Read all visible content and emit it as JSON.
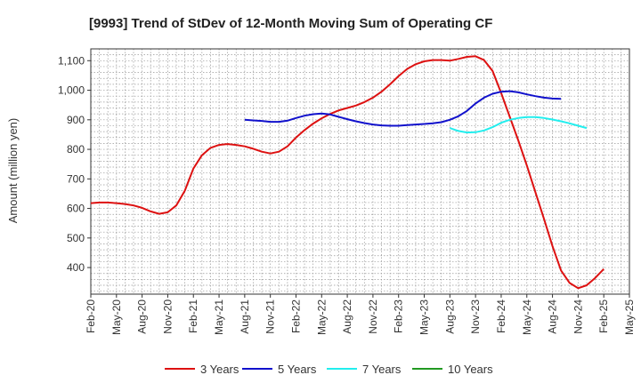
{
  "chart_data": {
    "type": "line",
    "title": "[9993]  Trend of StDev of 12-Month Moving Sum of Operating CF",
    "xlabel": "",
    "ylabel": "Amount (million yen)",
    "ylim": [
      310,
      1140
    ],
    "yticks": [
      400,
      500,
      600,
      700,
      800,
      900,
      1000,
      1100
    ],
    "ytick_labels": [
      "400",
      "500",
      "600",
      "700",
      "800",
      "900",
      "1,000",
      "1,100"
    ],
    "x_tick_labels": [
      "Feb-20",
      "May-20",
      "Aug-20",
      "Nov-20",
      "Feb-21",
      "May-21",
      "Aug-21",
      "Nov-21",
      "Feb-22",
      "May-22",
      "Aug-22",
      "Nov-22",
      "Feb-23",
      "May-23",
      "Aug-23",
      "Nov-23",
      "Feb-24",
      "May-24",
      "Aug-24",
      "Nov-24",
      "Feb-25",
      "May-25"
    ],
    "x_range_months": [
      0,
      63
    ],
    "grid": true,
    "legend_position": "bottom",
    "series": [
      {
        "name": "3 Years",
        "color": "#dd1111",
        "start_month": 0,
        "values": [
          618,
          620,
          620,
          618,
          615,
          610,
          602,
          590,
          582,
          587,
          610,
          660,
          735,
          780,
          805,
          815,
          818,
          815,
          810,
          802,
          792,
          786,
          792,
          810,
          840,
          865,
          887,
          905,
          920,
          932,
          940,
          948,
          960,
          975,
          995,
          1020,
          1048,
          1072,
          1088,
          1098,
          1102,
          1102,
          1100,
          1106,
          1113,
          1115,
          1102,
          1065,
          990,
          910,
          830,
          745,
          655,
          565,
          472,
          390,
          348,
          330,
          340,
          365,
          395
        ]
      },
      {
        "name": "5 Years",
        "color": "#1111cc",
        "start_month": 18,
        "values": [
          900,
          898,
          896,
          893,
          893,
          897,
          906,
          914,
          919,
          921,
          918,
          910,
          902,
          895,
          889,
          884,
          881,
          880,
          880,
          882,
          884,
          886,
          888,
          892,
          900,
          912,
          930,
          955,
          975,
          988,
          995,
          997,
          993,
          986,
          980,
          975,
          972,
          971
        ]
      },
      {
        "name": "7 Years",
        "color": "#22eeee",
        "start_month": 42,
        "values": [
          872,
          862,
          857,
          858,
          864,
          875,
          890,
          900,
          906,
          909,
          909,
          906,
          901,
          895,
          888,
          880,
          872
        ]
      },
      {
        "name": "10 Years",
        "color": "#229922",
        "start_month": 0,
        "values": []
      }
    ]
  }
}
